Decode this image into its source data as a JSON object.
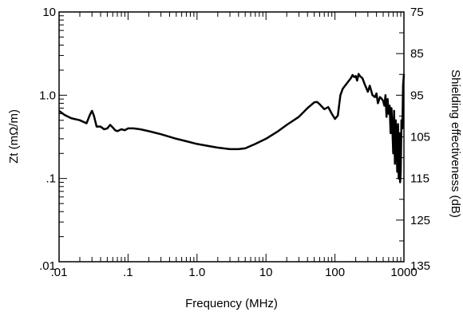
{
  "chart_data": {
    "type": "line",
    "x_axis": {
      "label": "Frequency (MHz)",
      "scale": "log",
      "range": [
        0.01,
        1000
      ],
      "tick_values": [
        0.01,
        0.1,
        1,
        10,
        100,
        1000
      ],
      "tick_labels": [
        ".01",
        ".1",
        "1.0",
        "10",
        "100",
        "1000"
      ]
    },
    "y_axis_left": {
      "label": "Zt (mΩ/m)",
      "scale": "log",
      "range": [
        0.01,
        10
      ],
      "tick_values": [
        10,
        1,
        0.1,
        0.01
      ],
      "tick_labels": [
        "10",
        "1.0",
        ".1",
        ".01"
      ]
    },
    "y_axis_right": {
      "label": "Shielding effectiveness (dB)",
      "scale": "linear",
      "range": [
        75,
        135
      ],
      "reversed": true,
      "tick_values": [
        75,
        85,
        95,
        105,
        115,
        125,
        135
      ],
      "tick_labels": [
        "75",
        "85",
        "95",
        "105",
        "115",
        "125",
        "135"
      ]
    },
    "grid": false,
    "series": [
      {
        "color": "#000000",
        "points": [
          [
            0.01,
            0.65
          ],
          [
            0.012,
            0.58
          ],
          [
            0.015,
            0.53
          ],
          [
            0.02,
            0.5
          ],
          [
            0.025,
            0.46
          ],
          [
            0.028,
            0.58
          ],
          [
            0.03,
            0.65
          ],
          [
            0.032,
            0.57
          ],
          [
            0.035,
            0.42
          ],
          [
            0.04,
            0.42
          ],
          [
            0.045,
            0.39
          ],
          [
            0.05,
            0.4
          ],
          [
            0.055,
            0.44
          ],
          [
            0.06,
            0.41
          ],
          [
            0.065,
            0.38
          ],
          [
            0.07,
            0.37
          ],
          [
            0.08,
            0.39
          ],
          [
            0.09,
            0.38
          ],
          [
            0.1,
            0.4
          ],
          [
            0.12,
            0.4
          ],
          [
            0.15,
            0.39
          ],
          [
            0.2,
            0.37
          ],
          [
            0.3,
            0.34
          ],
          [
            0.5,
            0.3
          ],
          [
            0.7,
            0.28
          ],
          [
            1.0,
            0.26
          ],
          [
            1.5,
            0.245
          ],
          [
            2.0,
            0.235
          ],
          [
            3.0,
            0.225
          ],
          [
            4.0,
            0.225
          ],
          [
            5.0,
            0.23
          ],
          [
            7.0,
            0.26
          ],
          [
            10,
            0.3
          ],
          [
            15,
            0.37
          ],
          [
            20,
            0.44
          ],
          [
            30,
            0.55
          ],
          [
            40,
            0.7
          ],
          [
            50,
            0.82
          ],
          [
            55,
            0.83
          ],
          [
            60,
            0.78
          ],
          [
            70,
            0.68
          ],
          [
            80,
            0.72
          ],
          [
            90,
            0.6
          ],
          [
            100,
            0.52
          ],
          [
            110,
            0.57
          ],
          [
            120,
            1.0
          ],
          [
            130,
            1.2
          ],
          [
            150,
            1.4
          ],
          [
            170,
            1.6
          ],
          [
            180,
            1.75
          ],
          [
            190,
            1.65
          ],
          [
            200,
            1.7
          ],
          [
            210,
            1.5
          ],
          [
            220,
            1.8
          ],
          [
            230,
            1.7
          ],
          [
            250,
            1.6
          ],
          [
            270,
            1.35
          ],
          [
            300,
            1.1
          ],
          [
            320,
            1.3
          ],
          [
            350,
            1.0
          ],
          [
            380,
            0.95
          ],
          [
            400,
            1.05
          ],
          [
            420,
            0.8
          ],
          [
            450,
            0.95
          ],
          [
            480,
            0.9
          ],
          [
            500,
            0.85
          ],
          [
            520,
            0.75
          ],
          [
            540,
            1.0
          ],
          [
            560,
            0.55
          ],
          [
            580,
            0.9
          ],
          [
            600,
            0.6
          ],
          [
            620,
            0.75
          ],
          [
            640,
            0.35
          ],
          [
            660,
            0.7
          ],
          [
            680,
            0.4
          ],
          [
            700,
            0.2
          ],
          [
            720,
            0.65
          ],
          [
            740,
            0.15
          ],
          [
            760,
            0.5
          ],
          [
            780,
            0.3
          ],
          [
            800,
            0.12
          ],
          [
            820,
            0.45
          ],
          [
            840,
            0.1
          ],
          [
            860,
            0.35
          ],
          [
            880,
            0.09
          ],
          [
            900,
            0.12
          ],
          [
            920,
            0.5
          ],
          [
            950,
            0.4
          ],
          [
            970,
            1.3
          ],
          [
            1000,
            1.8
          ]
        ]
      }
    ]
  }
}
